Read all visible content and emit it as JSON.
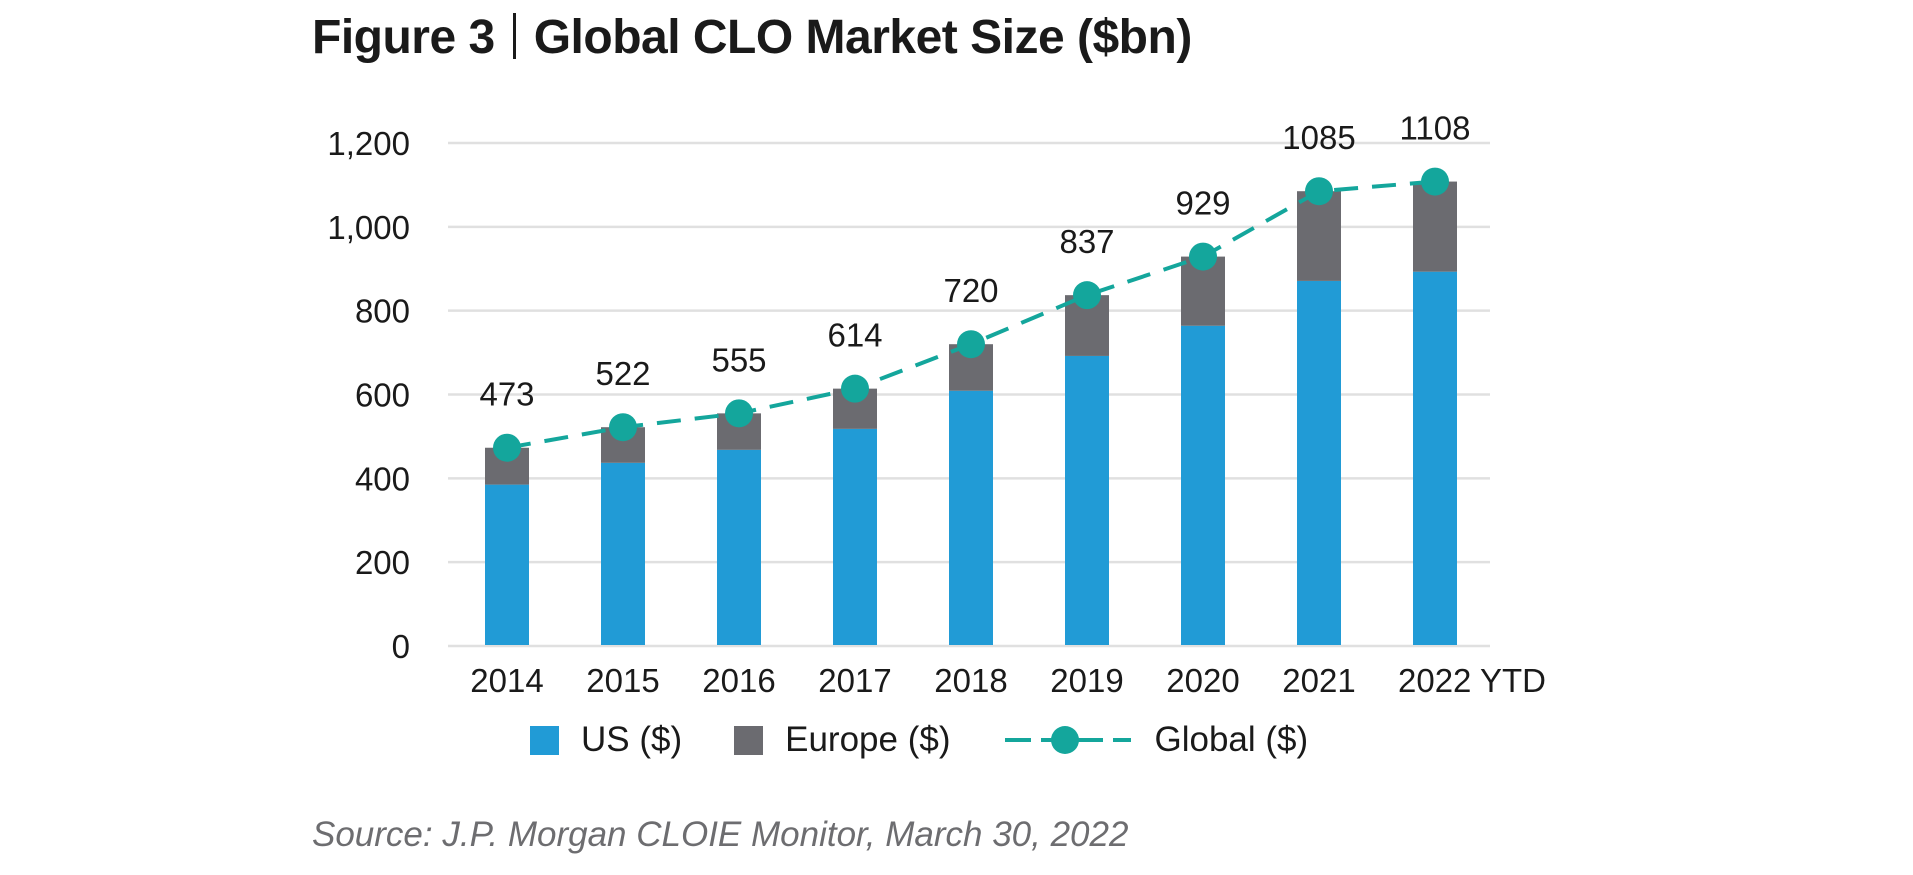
{
  "figure": {
    "label": "Figure 3",
    "title": "Global CLO Market Size ($bn)",
    "source": "Source: J.P. Morgan CLOIE Monitor, March 30, 2022"
  },
  "colors": {
    "us": "#219bd6",
    "europe": "#6b6b70",
    "global": "#14a69c",
    "grid": "#e0e0e0"
  },
  "chart_data": {
    "type": "bar",
    "stacked": true,
    "title": "Global CLO Market Size ($bn)",
    "xlabel": "",
    "ylabel": "",
    "categories": [
      "2014",
      "2015",
      "2016",
      "2017",
      "2018",
      "2019",
      "2020",
      "2021",
      "2022 YTD"
    ],
    "ylim": [
      0,
      1200
    ],
    "yticks": [
      0,
      200,
      400,
      600,
      800,
      1000,
      1200
    ],
    "ytick_labels": [
      "0",
      "200",
      "400",
      "600",
      "800",
      "1,000",
      "1,200"
    ],
    "grid": true,
    "legend_position": "bottom",
    "series": [
      {
        "name": "US ($)",
        "kind": "bar",
        "values": [
          385,
          437,
          468,
          518,
          609,
          692,
          764,
          871,
          893
        ]
      },
      {
        "name": "Europe ($)",
        "kind": "bar",
        "values": [
          88,
          85,
          87,
          96,
          111,
          145,
          165,
          214,
          215
        ]
      },
      {
        "name": "Global ($)",
        "kind": "line",
        "style": "dashed-with-markers",
        "values": [
          473,
          522,
          555,
          614,
          720,
          837,
          929,
          1085,
          1108
        ]
      }
    ],
    "data_labels": [
      "473",
      "522",
      "555",
      "614",
      "720",
      "837",
      "929",
      "1085",
      "1108"
    ]
  },
  "legend": [
    {
      "label": "US ($)",
      "type": "square",
      "color_key": "us"
    },
    {
      "label": "Europe ($)",
      "type": "square",
      "color_key": "europe"
    },
    {
      "label": "Global ($)",
      "type": "line-marker",
      "color_key": "global"
    }
  ]
}
